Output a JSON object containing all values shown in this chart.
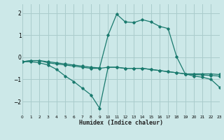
{
  "xlabel": "Humidex (Indice chaleur)",
  "bg_color": "#cce8e8",
  "grid_color": "#aacccc",
  "line_color": "#1a7a6e",
  "xlim": [
    0,
    23
  ],
  "ylim": [
    -2.6,
    2.4
  ],
  "yticks": [
    -2,
    -1,
    0,
    1,
    2
  ],
  "xtick_labels": [
    "0",
    "1",
    "2",
    "3",
    "4",
    "5",
    "6",
    "7",
    "8",
    "9",
    "10",
    "11",
    "12",
    "13",
    "14",
    "15",
    "16",
    "17",
    "18",
    "19",
    "20",
    "21",
    "22",
    "23"
  ],
  "series": [
    [
      -0.2,
      -0.15,
      -0.15,
      -0.25,
      -0.3,
      -0.35,
      -0.4,
      -0.45,
      -0.5,
      -0.5,
      -0.45,
      -0.45,
      -0.5,
      -0.5,
      -0.5,
      -0.55,
      -0.6,
      -0.65,
      -0.7,
      -0.75,
      -0.75,
      -0.75,
      -0.75,
      -0.78
    ],
    [
      -0.2,
      -0.2,
      -0.25,
      -0.35,
      -0.55,
      -0.85,
      -1.1,
      -1.4,
      -1.7,
      -2.3,
      -0.45,
      -0.45,
      -0.5,
      -0.5,
      -0.5,
      -0.55,
      -0.6,
      -0.65,
      -0.7,
      -0.75,
      -0.78,
      -0.8,
      -0.82,
      -0.85
    ],
    [
      -0.2,
      -0.15,
      -0.15,
      -0.2,
      -0.25,
      -0.3,
      -0.35,
      -0.4,
      -0.45,
      -0.48,
      1.0,
      1.95,
      1.6,
      1.57,
      1.7,
      1.6,
      1.4,
      1.3,
      0.02,
      -0.75,
      -0.85,
      -0.9,
      -1.0,
      -1.35
    ]
  ]
}
